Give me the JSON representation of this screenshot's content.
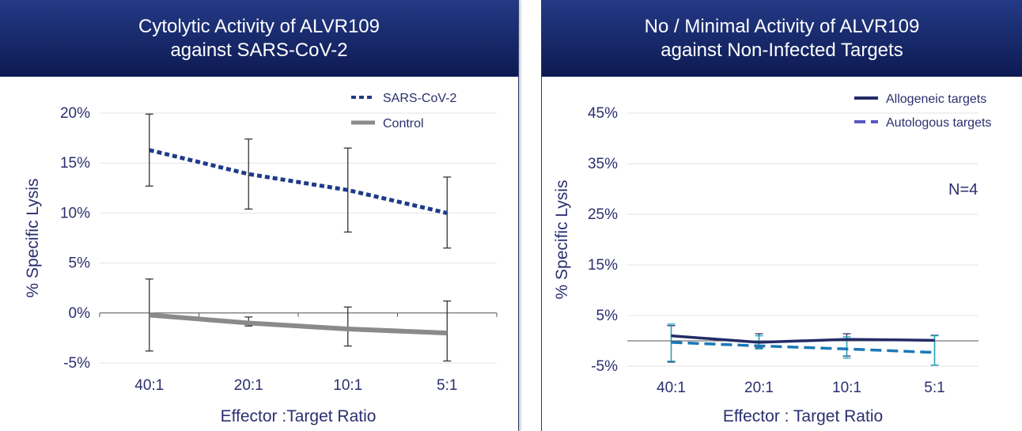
{
  "colors": {
    "header_bg": "#15276a",
    "header_text": "#ffffff",
    "axis_text": "#2b2f6e",
    "gridline": "#e3e3e3"
  },
  "left_panel": {
    "title_line1": "Cytolytic Activity of ALVR109",
    "title_line2": "against SARS-CoV-2"
  },
  "right_panel": {
    "title_line1": "No / Minimal Activity of ALVR109",
    "title_line2": "against Non-Infected Targets"
  },
  "chart_data": [
    {
      "type": "line",
      "title": "Cytolytic Activity of ALVR109 against SARS-CoV-2",
      "xlabel": "Effector :Target Ratio",
      "ylabel": "% Specific Lysis",
      "categories": [
        "40:1",
        "20:1",
        "10:1",
        "5:1"
      ],
      "y_ticks": [
        -5,
        0,
        5,
        10,
        15,
        20
      ],
      "y_tick_labels": [
        "-5%",
        "0%",
        "5%",
        "10%",
        "15%",
        "20%"
      ],
      "ylim": [
        -5,
        20
      ],
      "grid": true,
      "legend_position": "top-right",
      "series": [
        {
          "name": "SARS-CoV-2",
          "values": [
            16.3,
            13.9,
            12.3,
            10.0
          ],
          "error_low": [
            12.7,
            10.4,
            8.1,
            6.5
          ],
          "error_high": [
            19.9,
            17.4,
            16.5,
            13.6
          ],
          "color": "#1e3a8a",
          "style": "dotted"
        },
        {
          "name": "Control",
          "values": [
            -0.2,
            -1.0,
            -1.6,
            -2.0
          ],
          "error_low": [
            -3.8,
            -1.3,
            -3.3,
            -4.8
          ],
          "error_high": [
            3.4,
            -0.4,
            0.6,
            1.2
          ],
          "color": "#8a8a8a",
          "style": "solid"
        }
      ]
    },
    {
      "type": "line",
      "title": "No / Minimal Activity of ALVR109 against Non-Infected Targets",
      "xlabel": "Effector : Target Ratio",
      "ylabel": "% Specific Lysis",
      "categories": [
        "40:1",
        "20:1",
        "10:1",
        "5:1"
      ],
      "y_ticks": [
        -5,
        5,
        15,
        25,
        35,
        45
      ],
      "y_tick_labels": [
        "-5%",
        "5%",
        "15%",
        "25%",
        "35%",
        "45%"
      ],
      "ylim": [
        -5,
        45
      ],
      "grid": true,
      "legend_position": "top-right",
      "annotation": "N=4",
      "series": [
        {
          "name": "Allogeneic targets",
          "values": [
            1.0,
            -0.3,
            0.3,
            0.1
          ],
          "error_low": [
            -4.2,
            -1.4,
            -3.0,
            -4.8
          ],
          "error_high": [
            3.0,
            1.4,
            1.4,
            1.1
          ],
          "color": "#232b66",
          "style": "solid"
        },
        {
          "name": "Autologous targets",
          "values": [
            -0.3,
            -1.0,
            -1.6,
            -2.3
          ],
          "error_low": [
            -4.0,
            -1.6,
            -3.4,
            -4.8
          ],
          "error_high": [
            3.3,
            1.0,
            0.8,
            1.0
          ],
          "color": "#1a78b8",
          "legend_color": "#5a56c4",
          "style": "dashed"
        }
      ]
    }
  ]
}
